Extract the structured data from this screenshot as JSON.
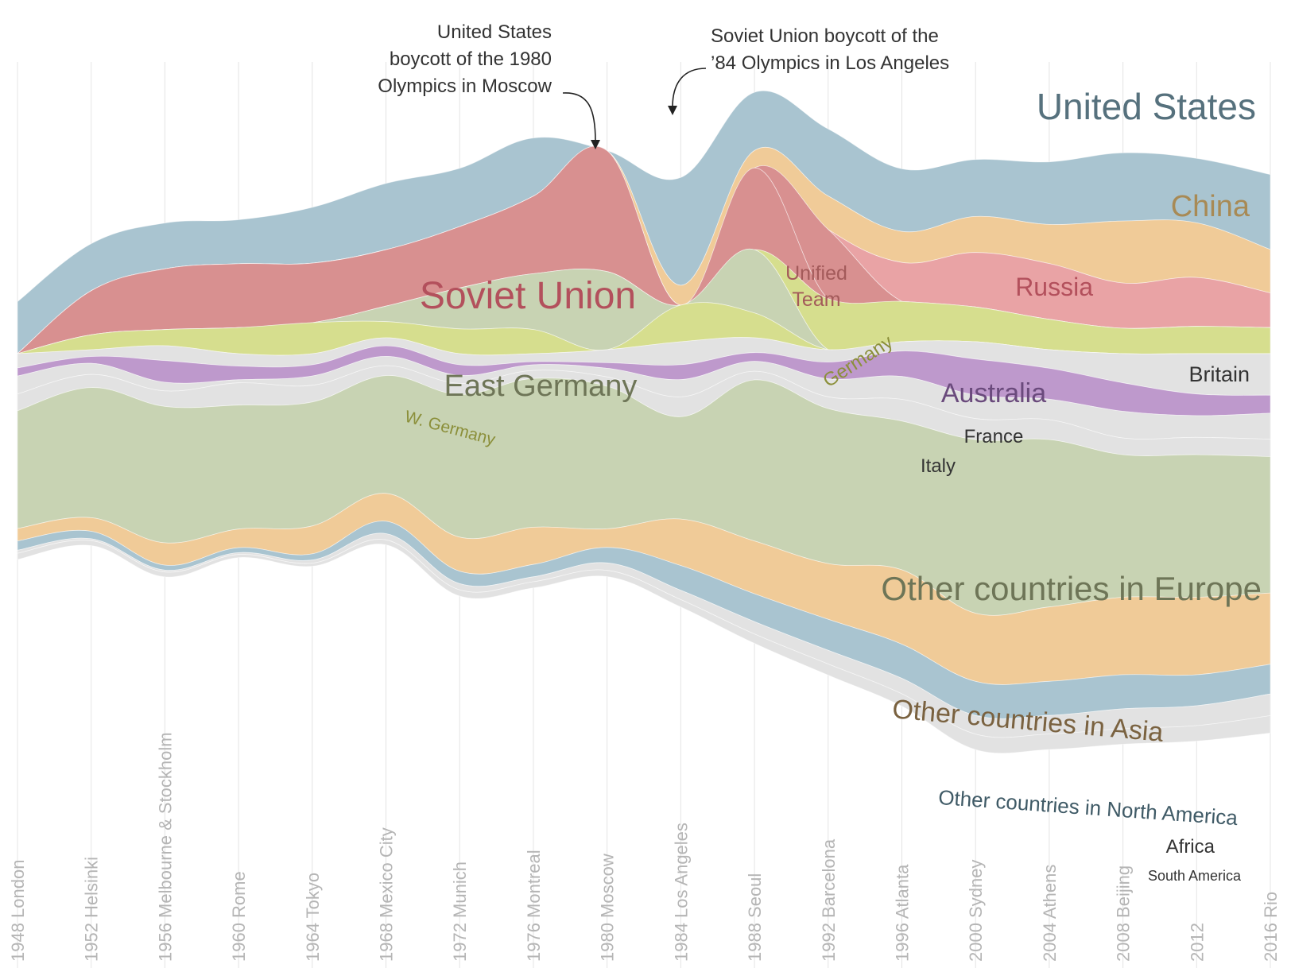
{
  "chart_data": {
    "type": "area",
    "stacked": true,
    "layout": "streamgraph",
    "x": [
      "1948 London",
      "1952 Helsinki",
      "1956 Melbourne & Stockholm",
      "1960 Rome",
      "1964 Tokyo",
      "1968 Mexico City",
      "1972 Munich",
      "1976 Montreal",
      "1980 Moscow",
      "1984 Los Angeles",
      "1988 Seoul",
      "1992 Barcelona",
      "1996 Atlanta",
      "2000 Sydney",
      "2004 Athens",
      "2008 Beijing",
      "2012",
      "2016 Rio"
    ],
    "series": [
      {
        "name": "United States",
        "color": "#a9c4d0",
        "values": [
          84,
          76,
          74,
          71,
          90,
          107,
          94,
          94,
          0,
          174,
          94,
          108,
          101,
          92,
          101,
          110,
          104,
          121
        ]
      },
      {
        "name": "China",
        "color": "#f0cb98",
        "values": [
          0,
          0,
          0,
          0,
          0,
          0,
          0,
          0,
          0,
          32,
          28,
          54,
          50,
          58,
          63,
          100,
          88,
          70
        ]
      },
      {
        "name": "Russia",
        "color": "#e9a3a5",
        "values": [
          0,
          0,
          0,
          0,
          0,
          0,
          0,
          0,
          0,
          0,
          0,
          0,
          63,
          88,
          90,
          73,
          79,
          56
        ]
      },
      {
        "name": "Unified Team",
        "color": "#d89090",
        "values": [
          0,
          0,
          0,
          0,
          0,
          0,
          0,
          0,
          0,
          0,
          0,
          112,
          0,
          0,
          0,
          0,
          0,
          0
        ]
      },
      {
        "name": "Soviet Union",
        "color": "#d89090",
        "values": [
          0,
          71,
          98,
          103,
          96,
          91,
          99,
          125,
          195,
          0,
          132,
          0,
          0,
          0,
          0,
          0,
          0,
          0
        ]
      },
      {
        "name": "Germany",
        "color": "#d6de8e",
        "values": [
          0,
          0,
          0,
          0,
          0,
          0,
          0,
          0,
          0,
          0,
          0,
          82,
          65,
          56,
          49,
          41,
          44,
          42
        ]
      },
      {
        "name": "East Germany",
        "color": "#c8d3b3",
        "values": [
          0,
          0,
          0,
          0,
          0,
          25,
          66,
          90,
          126,
          0,
          102,
          0,
          0,
          0,
          0,
          0,
          0,
          0
        ]
      },
      {
        "name": "W. Germany",
        "color": "#d6de8e",
        "values": [
          0,
          24,
          26,
          42,
          50,
          26,
          40,
          39,
          0,
          59,
          40,
          0,
          0,
          0,
          0,
          0,
          0,
          0
        ]
      },
      {
        "name": "Britain",
        "color": "#e2e2e2",
        "values": [
          23,
          11,
          24,
          20,
          18,
          13,
          18,
          13,
          21,
          37,
          24,
          20,
          15,
          28,
          30,
          47,
          65,
          67
        ]
      },
      {
        "name": "Australia",
        "color": "#be99cc",
        "values": [
          13,
          11,
          35,
          22,
          18,
          17,
          17,
          5,
          9,
          24,
          14,
          27,
          41,
          58,
          50,
          46,
          35,
          29
        ]
      },
      {
        "name": "France",
        "color": "#e2e2e2",
        "values": [
          29,
          18,
          14,
          5,
          15,
          15,
          13,
          9,
          14,
          28,
          16,
          29,
          37,
          38,
          33,
          43,
          35,
          42
        ]
      },
      {
        "name": "Italy",
        "color": "#e2e2e2",
        "values": [
          27,
          21,
          25,
          36,
          27,
          16,
          18,
          13,
          15,
          32,
          14,
          19,
          35,
          34,
          32,
          27,
          28,
          28
        ]
      },
      {
        "name": "Other countries in Europe",
        "color": "#c8d3b3",
        "values": [
          190,
          210,
          220,
          200,
          200,
          190,
          230,
          240,
          230,
          165,
          260,
          250,
          240,
          280,
          270,
          230,
          230,
          220
        ]
      },
      {
        "name": "Other countries in Asia",
        "color": "#f0cb98",
        "values": [
          20,
          22,
          36,
          30,
          45,
          45,
          55,
          60,
          30,
          75,
          85,
          90,
          120,
          110,
          120,
          125,
          125,
          115
        ]
      },
      {
        "name": "Other countries in North America",
        "color": "#a9c4d0",
        "values": [
          15,
          12,
          8,
          8,
          10,
          20,
          20,
          20,
          25,
          40,
          45,
          50,
          55,
          55,
          55,
          55,
          50,
          48
        ]
      },
      {
        "name": "Africa",
        "color": "#e2e2e2",
        "values": [
          5,
          3,
          3,
          3,
          5,
          10,
          10,
          8,
          12,
          15,
          20,
          22,
          25,
          30,
          30,
          32,
          32,
          35
        ]
      },
      {
        "name": "South America",
        "color": "#e2e2e2",
        "values": [
          10,
          8,
          8,
          5,
          5,
          8,
          10,
          10,
          10,
          12,
          15,
          18,
          20,
          25,
          25,
          25,
          25,
          28
        ]
      }
    ],
    "series_labels": [
      {
        "name": "United States",
        "text": "United States"
      },
      {
        "name": "China",
        "text": "China"
      },
      {
        "name": "Russia",
        "text": "Russia"
      },
      {
        "name": "Unified Team",
        "text": "Unified"
      },
      {
        "name": "Unified Team",
        "text": "Team"
      },
      {
        "name": "Soviet Union",
        "text": "Soviet Union"
      },
      {
        "name": "Germany",
        "text": "Germany"
      },
      {
        "name": "East Germany",
        "text": "East Germany"
      },
      {
        "name": "W. Germany",
        "text": "W. Germany"
      },
      {
        "name": "Britain",
        "text": "Britain"
      },
      {
        "name": "Australia",
        "text": "Australia"
      },
      {
        "name": "France",
        "text": "France"
      },
      {
        "name": "Italy",
        "text": "Italy"
      },
      {
        "name": "Other countries in Europe",
        "text": "Other countries in Europe"
      },
      {
        "name": "Other countries in Asia",
        "text": "Other countries in Asia"
      },
      {
        "name": "Other countries in North America",
        "text": "Other countries in North America"
      },
      {
        "name": "Africa",
        "text": "Africa"
      },
      {
        "name": "South America",
        "text": "South America"
      }
    ],
    "annotations": [
      {
        "target": "1980 Moscow",
        "lines": [
          "United States",
          "boycott of the 1980",
          "Olympics in Moscow"
        ]
      },
      {
        "target": "1984 Los Angeles",
        "lines": [
          "Soviet Union boycott of the",
          "’84 Olympics in Los Angeles"
        ]
      }
    ],
    "title": "",
    "xlabel": "",
    "ylabel": "",
    "grid": true,
    "legend": "inline labels"
  }
}
